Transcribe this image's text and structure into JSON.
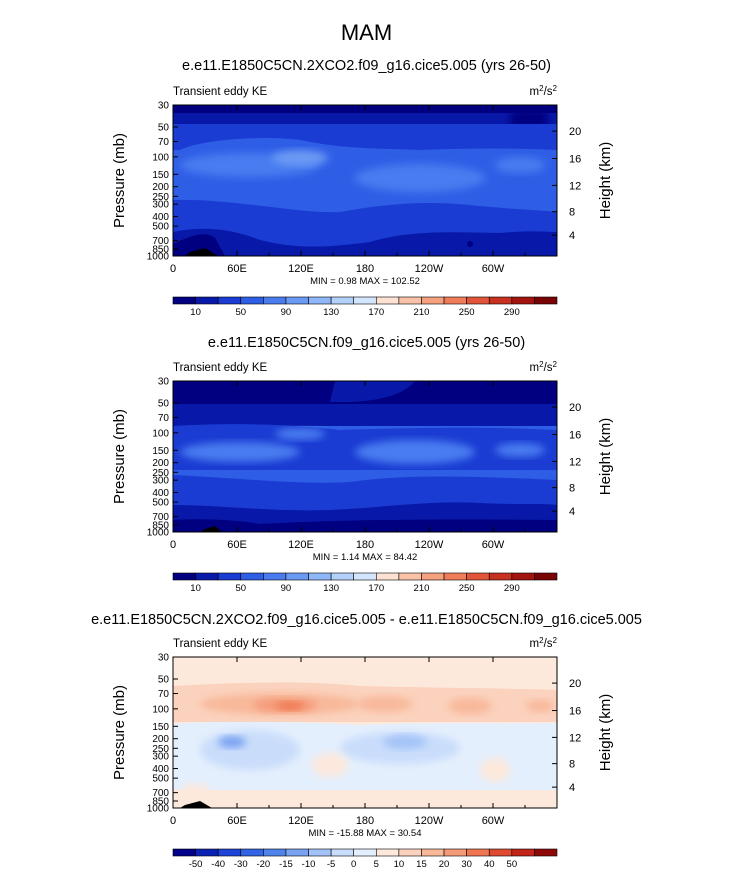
{
  "page_title": "MAM",
  "colors": {
    "abs_palette": [
      "#000080",
      "#0818a8",
      "#1a3cd2",
      "#2f5ee6",
      "#4a7cf0",
      "#6b9af4",
      "#8fb6f8",
      "#b3d0fb",
      "#d4e6fd",
      "#fde2d4",
      "#f9c2a8",
      "#f5a17f",
      "#ef7d5a",
      "#e2553a",
      "#c8301f",
      "#a3130f",
      "#7a0303"
    ],
    "diff_palette": [
      "#00008a",
      "#0a22b4",
      "#1f44d8",
      "#3464e6",
      "#5082ec",
      "#79a2f2",
      "#a3c2f8",
      "#c9ddfb",
      "#e4effd",
      "#fde8dc",
      "#fbd2bd",
      "#f8b89a",
      "#f59a78",
      "#ef7650",
      "#e04a30",
      "#c2241a",
      "#8e0808"
    ]
  },
  "chart_data": [
    {
      "type": "heatmap",
      "panel_title": "e.e11.E1850C5CN.2XCO2.f09_g16.cice5.005 (yrs 26-50)",
      "left_label": "Transient eddy KE",
      "units_base": "m",
      "units_sup1": "2",
      "units_mid": "/s",
      "units_sup2": "2",
      "ylabel": "Pressure (mb)",
      "ylabel_right": "Height (km)",
      "x_ticks": [
        "0",
        "60E",
        "120E",
        "180",
        "120W",
        "60W"
      ],
      "x_tick_lon": [
        0,
        60,
        120,
        180,
        240,
        300
      ],
      "xlim": [
        0,
        360
      ],
      "y_ticks": [
        "30",
        "50",
        "70",
        "100",
        "150",
        "200",
        "250",
        "300",
        "400",
        "500",
        "700",
        "850",
        "1000"
      ],
      "y_tick_p": [
        30,
        50,
        70,
        100,
        150,
        200,
        250,
        300,
        400,
        500,
        700,
        850,
        1000
      ],
      "y_scale": "log",
      "ylim": [
        1000,
        30
      ],
      "right_ticks": [
        "20",
        "16",
        "12",
        "8",
        "4"
      ],
      "right_tick_p": [
        55,
        104,
        194,
        357,
        616
      ],
      "stats": "MIN =   0.98  MAX = 102.52",
      "colorbar_labels": [
        "10",
        "50",
        "90",
        "130",
        "170",
        "210",
        "250",
        "290"
      ],
      "colorbar_kind": "abs"
    },
    {
      "type": "heatmap",
      "panel_title": "e.e11.E1850C5CN.f09_g16.cice5.005 (yrs 26-50)",
      "left_label": "Transient eddy KE",
      "units_base": "m",
      "units_sup1": "2",
      "units_mid": "/s",
      "units_sup2": "2",
      "ylabel": "Pressure (mb)",
      "ylabel_right": "Height (km)",
      "x_ticks": [
        "0",
        "60E",
        "120E",
        "180",
        "120W",
        "60W"
      ],
      "x_tick_lon": [
        0,
        60,
        120,
        180,
        240,
        300
      ],
      "xlim": [
        0,
        360
      ],
      "y_ticks": [
        "30",
        "50",
        "70",
        "100",
        "150",
        "200",
        "250",
        "300",
        "400",
        "500",
        "700",
        "850",
        "1000"
      ],
      "y_tick_p": [
        30,
        50,
        70,
        100,
        150,
        200,
        250,
        300,
        400,
        500,
        700,
        850,
        1000
      ],
      "y_scale": "log",
      "ylim": [
        1000,
        30
      ],
      "right_ticks": [
        "20",
        "16",
        "12",
        "8",
        "4"
      ],
      "right_tick_p": [
        55,
        104,
        194,
        357,
        616
      ],
      "stats": "MIN =   1.14  MAX =  84.42",
      "colorbar_labels": [
        "10",
        "50",
        "90",
        "130",
        "170",
        "210",
        "250",
        "290"
      ],
      "colorbar_kind": "abs"
    },
    {
      "type": "heatmap",
      "panel_title": "e.e11.E1850C5CN.2XCO2.f09_g16.cice5.005 - e.e11.E1850C5CN.f09_g16.cice5.005",
      "left_label": "Transient eddy KE",
      "units_base": "m",
      "units_sup1": "2",
      "units_mid": "/s",
      "units_sup2": "2",
      "ylabel": "Pressure (mb)",
      "ylabel_right": "Height (km)",
      "x_ticks": [
        "0",
        "60E",
        "120E",
        "180",
        "120W",
        "60W"
      ],
      "x_tick_lon": [
        0,
        60,
        120,
        180,
        240,
        300
      ],
      "xlim": [
        0,
        360
      ],
      "y_ticks": [
        "30",
        "50",
        "70",
        "100",
        "150",
        "200",
        "250",
        "300",
        "400",
        "500",
        "700",
        "850",
        "1000"
      ],
      "y_tick_p": [
        30,
        50,
        70,
        100,
        150,
        200,
        250,
        300,
        400,
        500,
        700,
        850,
        1000
      ],
      "y_scale": "log",
      "ylim": [
        1000,
        30
      ],
      "right_ticks": [
        "20",
        "16",
        "12",
        "8",
        "4"
      ],
      "right_tick_p": [
        55,
        104,
        194,
        357,
        616
      ],
      "stats": "MIN = -15.88  MAX =  30.54",
      "colorbar_labels": [
        "-50",
        "-40",
        "-30",
        "-20",
        "-15",
        "-10",
        "-5",
        "0",
        "5",
        "10",
        "15",
        "20",
        "30",
        "40",
        "50"
      ],
      "colorbar_kind": "diff"
    }
  ]
}
